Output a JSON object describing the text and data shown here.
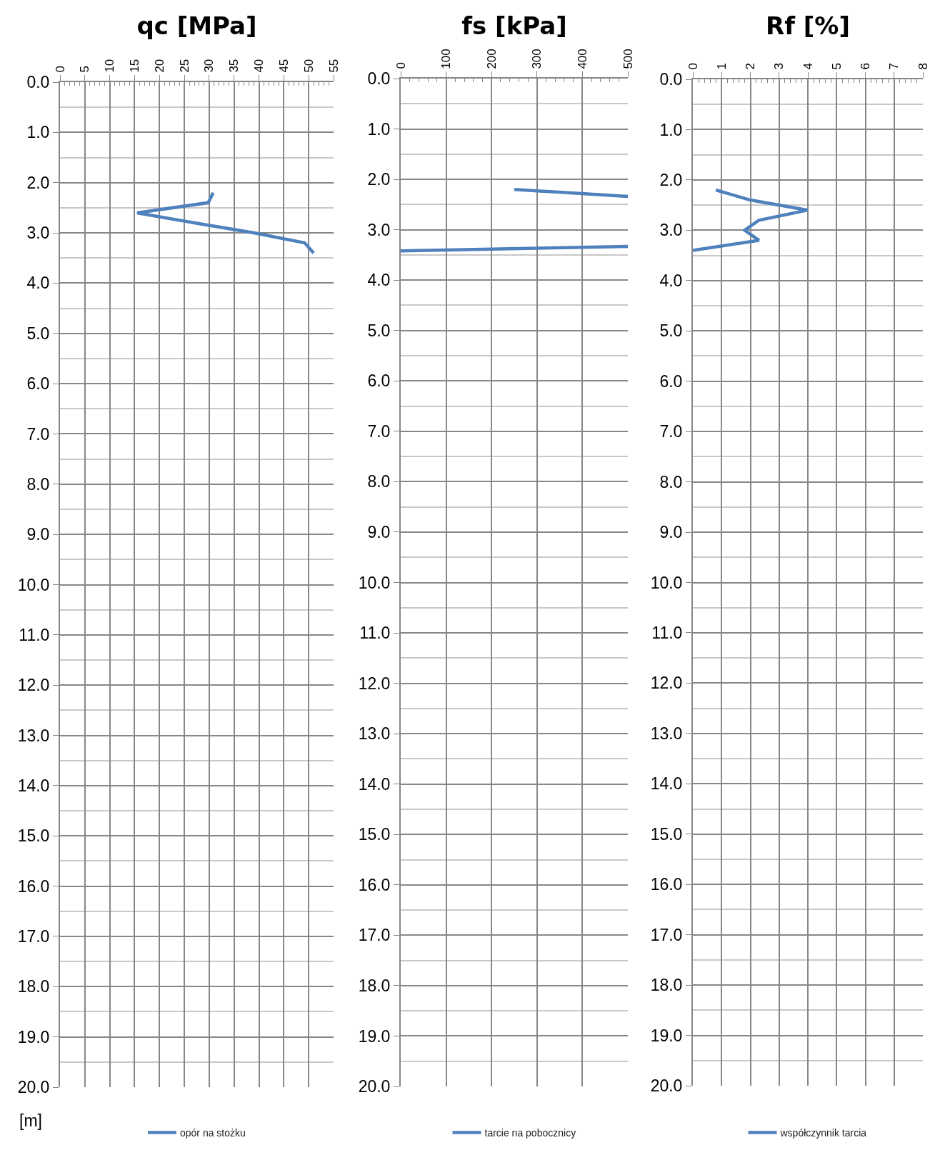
{
  "chart_data": [
    {
      "type": "line",
      "title": "qc [MPa]",
      "ylabel": "[m]",
      "legend": "bottom",
      "grid": true,
      "marker": "none",
      "line_style": "solid",
      "xlim": [
        0,
        55
      ],
      "xticks": [
        0,
        5,
        10,
        15,
        20,
        25,
        30,
        35,
        40,
        45,
        50,
        55
      ],
      "ylim": [
        20,
        0
      ],
      "yticks": [
        {
          "value": 0,
          "label": "0.0"
        },
        {
          "value": 1,
          "label": "1.0"
        },
        {
          "value": 2,
          "label": "2.0"
        },
        {
          "value": 3,
          "label": "3.0"
        },
        {
          "value": 4,
          "label": "4.0"
        },
        {
          "value": 5,
          "label": "5.0"
        },
        {
          "value": 6,
          "label": "6.0"
        },
        {
          "value": 7,
          "label": "7.0"
        },
        {
          "value": 8,
          "label": "8.0"
        },
        {
          "value": 9,
          "label": "9.0"
        },
        {
          "value": 10,
          "label": "10.0"
        },
        {
          "value": 11,
          "label": "11.0"
        },
        {
          "value": 12,
          "label": "12.0"
        },
        {
          "value": 13,
          "label": "13.0"
        },
        {
          "value": 14,
          "label": "14.0"
        },
        {
          "value": 15,
          "label": "15.0"
        },
        {
          "value": 16,
          "label": "16.0"
        },
        {
          "value": 17,
          "label": "17.0"
        },
        {
          "value": 18,
          "label": "18.0"
        },
        {
          "value": 19,
          "label": "19.0"
        },
        {
          "value": 20,
          "label": "20.0"
        }
      ],
      "series": [
        {
          "name": "opór na stożku",
          "color": "#4f81bd",
          "x": [
            30.8,
            29.8,
            15.5,
            27,
            39,
            49.2,
            51
          ],
          "values": [
            2.2,
            2.4,
            2.6,
            2.8,
            3.0,
            3.2,
            3.4
          ]
        }
      ]
    },
    {
      "type": "line",
      "title": "fs [kPa]",
      "legend": "bottom",
      "grid": true,
      "marker": "none",
      "line_style": "solid",
      "xlim": [
        0,
        500
      ],
      "xticks": [
        0,
        100,
        200,
        300,
        400,
        500
      ],
      "ylim": [
        20,
        0
      ],
      "yticks": [
        {
          "value": 0,
          "label": "0.0"
        },
        {
          "value": 1,
          "label": "1.0"
        },
        {
          "value": 2,
          "label": "2.0"
        },
        {
          "value": 3,
          "label": "3.0"
        },
        {
          "value": 4,
          "label": "4.0"
        },
        {
          "value": 5,
          "label": "5.0"
        },
        {
          "value": 6,
          "label": "6.0"
        },
        {
          "value": 7,
          "label": "7.0"
        },
        {
          "value": 8,
          "label": "8.0"
        },
        {
          "value": 9,
          "label": "9.0"
        },
        {
          "value": 10,
          "label": "10.0"
        },
        {
          "value": 11,
          "label": "11.0"
        },
        {
          "value": 12,
          "label": "12.0"
        },
        {
          "value": 13,
          "label": "13.0"
        },
        {
          "value": 14,
          "label": "14.0"
        },
        {
          "value": 15,
          "label": "15.0"
        },
        {
          "value": 16,
          "label": "16.0"
        },
        {
          "value": 17,
          "label": "17.0"
        },
        {
          "value": 18,
          "label": "18.0"
        },
        {
          "value": 19,
          "label": "19.0"
        },
        {
          "value": 20,
          "label": "20.0"
        }
      ],
      "series": [
        {
          "name": "tarcie na pobocznicy",
          "color": "#4f81bd",
          "x": [
            250,
            500,
            null,
            500,
            0
          ],
          "values": [
            2.2,
            2.34,
            null,
            3.33,
            3.42
          ]
        }
      ]
    },
    {
      "type": "line",
      "title": "Rf [%]",
      "legend": "bottom",
      "grid": true,
      "marker": "none",
      "line_style": "solid",
      "xlim": [
        0,
        8
      ],
      "xticks": [
        0,
        1,
        2,
        3,
        4,
        5,
        6,
        7,
        8
      ],
      "ylim": [
        20,
        0
      ],
      "yticks": [
        {
          "value": 0,
          "label": "0.0"
        },
        {
          "value": 1,
          "label": "1.0"
        },
        {
          "value": 2,
          "label": "2.0"
        },
        {
          "value": 3,
          "label": "3.0"
        },
        {
          "value": 4,
          "label": "4.0"
        },
        {
          "value": 5,
          "label": "5.0"
        },
        {
          "value": 6,
          "label": "6.0"
        },
        {
          "value": 7,
          "label": "7.0"
        },
        {
          "value": 8,
          "label": "8.0"
        },
        {
          "value": 9,
          "label": "9.0"
        },
        {
          "value": 10,
          "label": "10.0"
        },
        {
          "value": 11,
          "label": "11.0"
        },
        {
          "value": 12,
          "label": "12.0"
        },
        {
          "value": 13,
          "label": "13.0"
        },
        {
          "value": 14,
          "label": "14.0"
        },
        {
          "value": 15,
          "label": "15.0"
        },
        {
          "value": 16,
          "label": "16.0"
        },
        {
          "value": 17,
          "label": "17.0"
        },
        {
          "value": 18,
          "label": "18.0"
        },
        {
          "value": 19,
          "label": "19.0"
        },
        {
          "value": 20,
          "label": "20.0"
        }
      ],
      "series": [
        {
          "name": "współczynnik tarcia",
          "color": "#4f81bd",
          "x": [
            0.8,
            2.0,
            4.0,
            2.3,
            1.8,
            2.3,
            0
          ],
          "values": [
            2.2,
            2.4,
            2.6,
            2.8,
            3.0,
            3.2,
            3.4
          ]
        }
      ]
    }
  ]
}
